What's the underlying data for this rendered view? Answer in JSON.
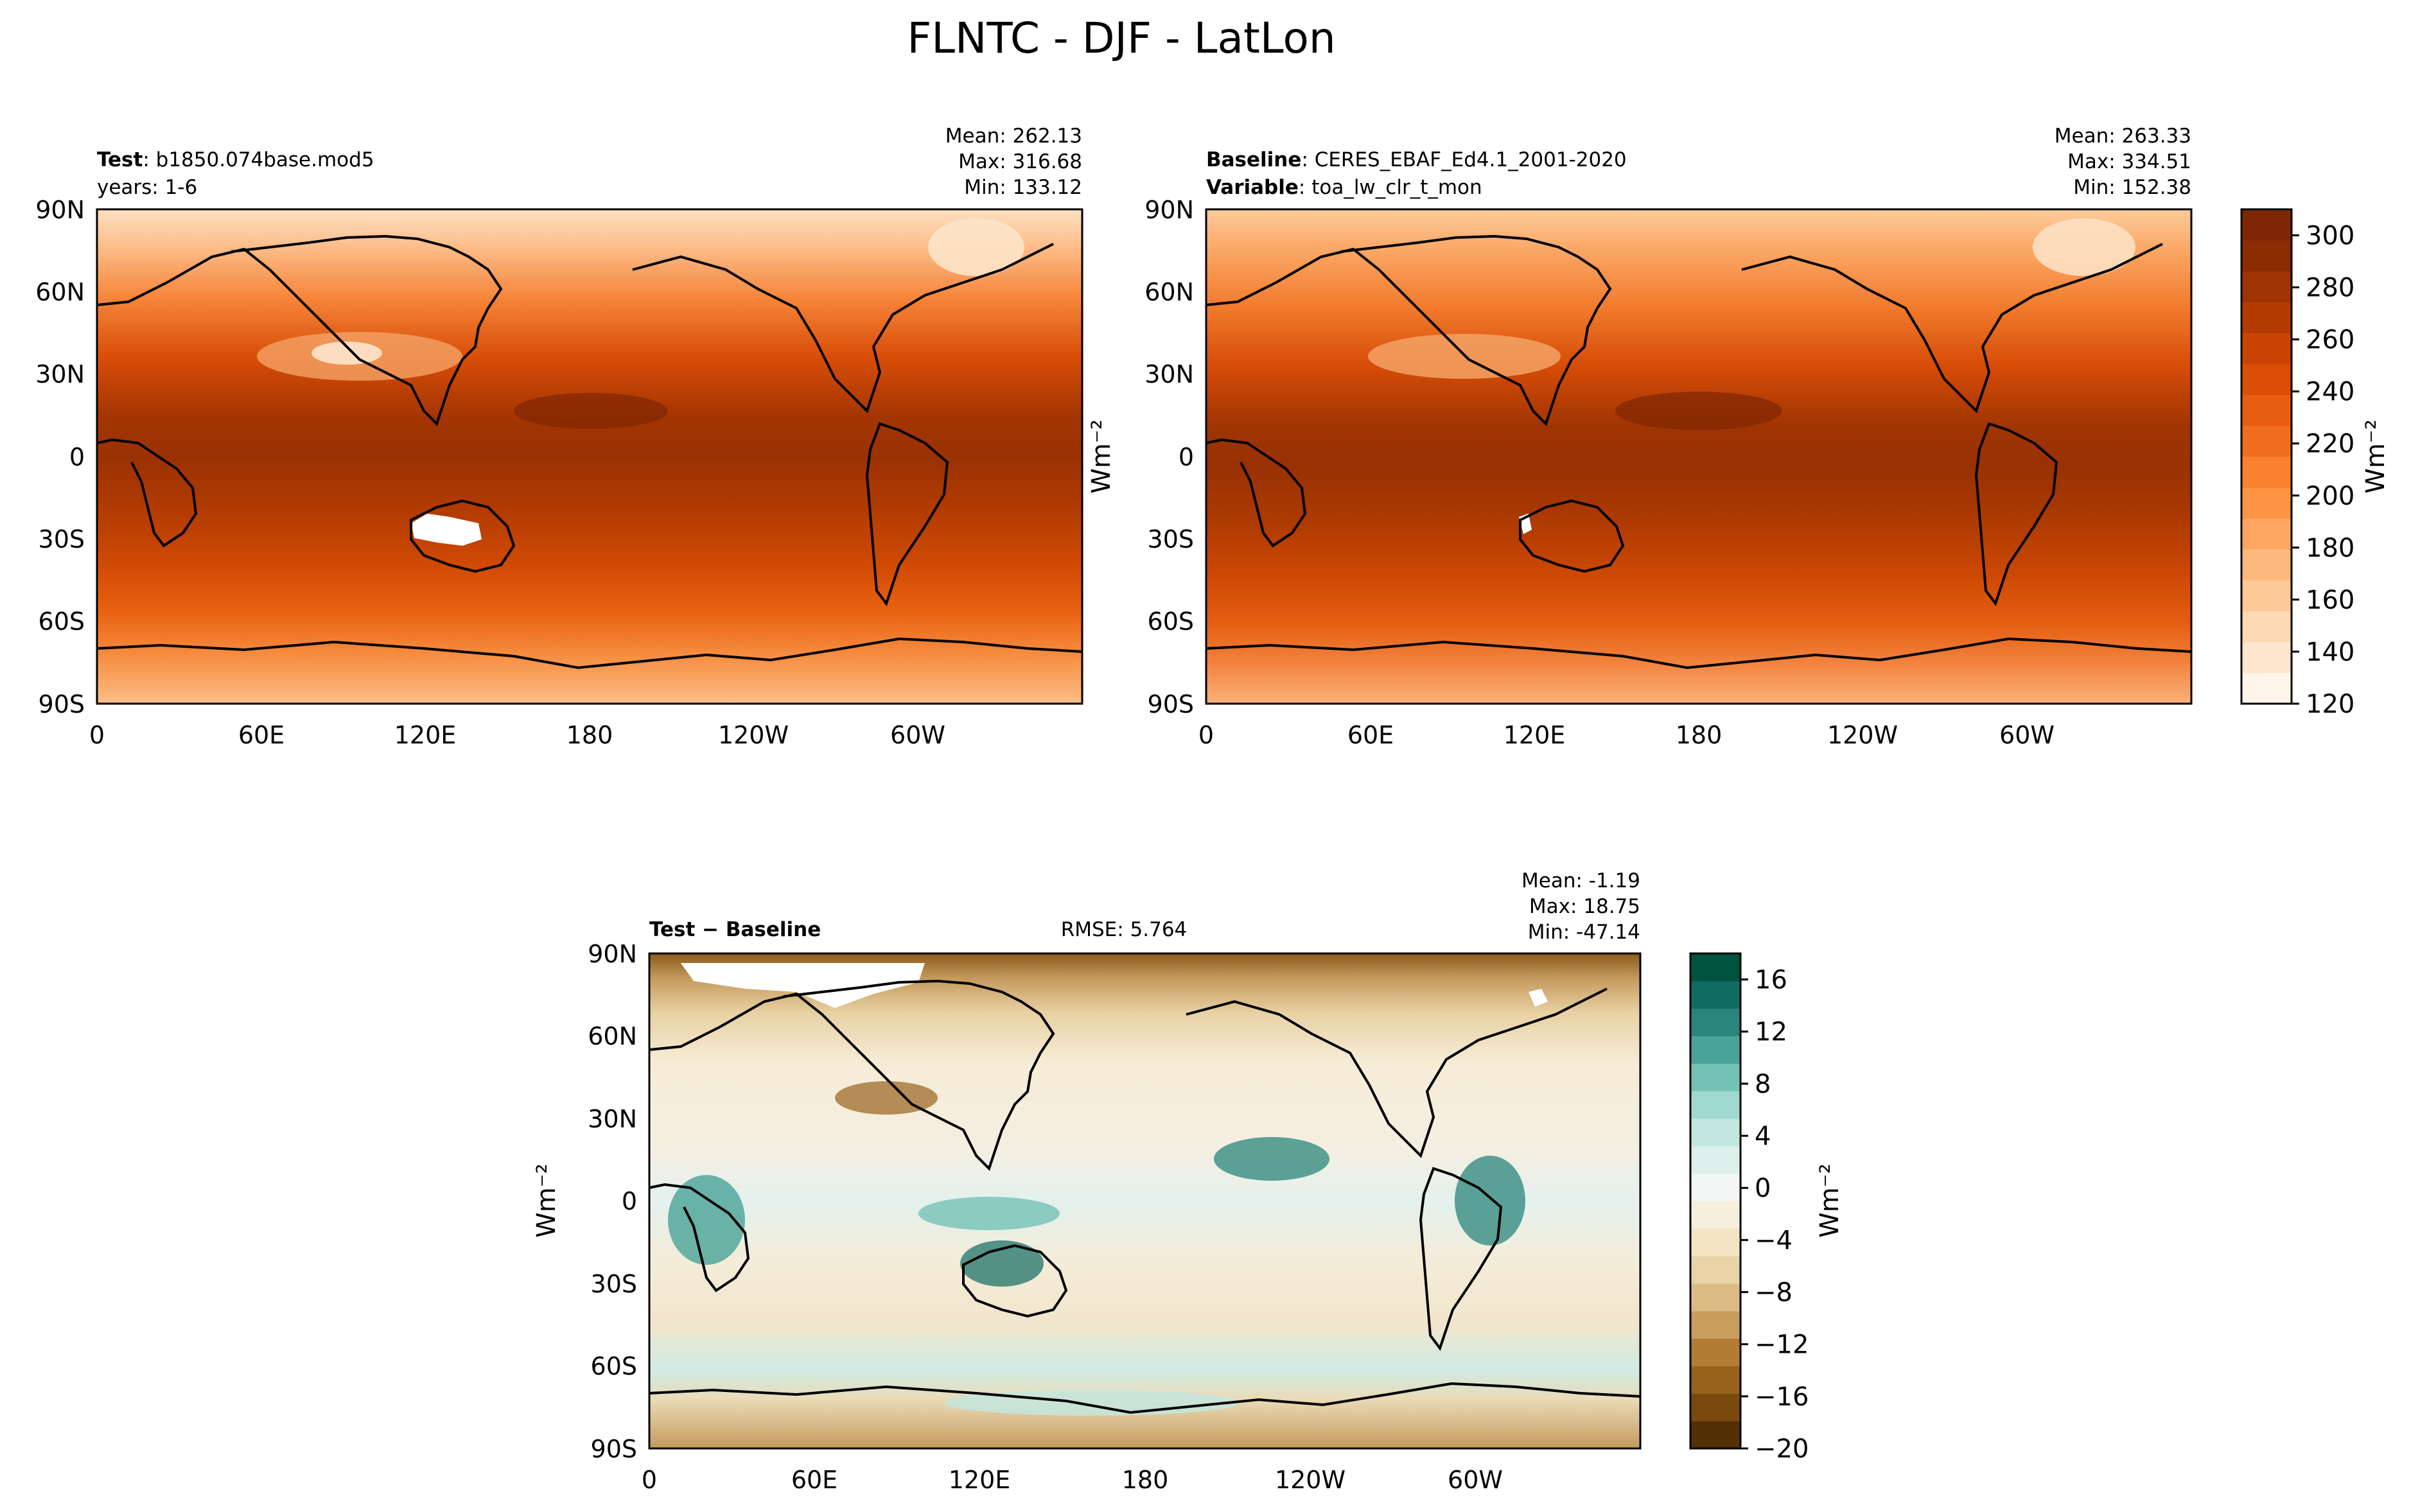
{
  "title": "FLNTC - DJF - LatLon",
  "panels": {
    "test": {
      "label_bold": "Test",
      "label_text": "b1850.074base.mod5",
      "line2": "years: 1-6",
      "mean": "Mean: 262.13",
      "max": "Max: 316.68",
      "min": "Min: 133.12"
    },
    "baseline": {
      "label_bold": "Baseline",
      "label_text": "CERES_EBAF_Ed4.1_2001-2020",
      "line2_bold": "Variable",
      "line2_text": "toa_lw_clr_t_mon",
      "mean": "Mean: 263.33",
      "max": "Max: 334.51",
      "min": "Min: 152.38",
      "ylabel": "Wm⁻²"
    },
    "diff": {
      "label_bold": "Test − Baseline",
      "rmse": "RMSE: 5.764",
      "mean": "Mean: -1.19",
      "max": "Max: 18.75",
      "min": "Min: -47.14",
      "ylabel": "Wm⁻²"
    }
  },
  "axes": {
    "lat_ticks": [
      "90N",
      "60N",
      "30N",
      "0",
      "30S",
      "60S",
      "90S"
    ],
    "lon_ticks": [
      "0",
      "60E",
      "120E",
      "180",
      "120W",
      "60W"
    ]
  },
  "colorbar_top": {
    "label": "Wm⁻²",
    "ticks": [
      "300",
      "280",
      "260",
      "240",
      "220",
      "200",
      "180",
      "160",
      "140",
      "120"
    ],
    "range": [
      120,
      310
    ],
    "colors": [
      "#fff5eb",
      "#fee6ce",
      "#fdd9b4",
      "#fdc997",
      "#fdb97d",
      "#fda762",
      "#fd9446",
      "#f9812f",
      "#f16d1f",
      "#e85d12",
      "#dc4e07",
      "#c94402",
      "#b33b02",
      "#9e3303",
      "#8a2c04",
      "#7f2704"
    ]
  },
  "colorbar_diff": {
    "label": "Wm⁻²",
    "ticks": [
      "16",
      "12",
      "8",
      "4",
      "0",
      "−4",
      "−8",
      "−12",
      "−16",
      "−20"
    ],
    "range": [
      -20,
      18
    ],
    "colors": [
      "#543005",
      "#7a4a0d",
      "#98621c",
      "#b27d33",
      "#c99d5c",
      "#dcbc84",
      "#e9d3a5",
      "#f3e4c3",
      "#f7efdd",
      "#f3f6f4",
      "#dcefeb",
      "#c2e7e0",
      "#9fd9cf",
      "#74c2b5",
      "#4aa399",
      "#2a857c",
      "#106b61",
      "#00533f"
    ]
  },
  "chart_data": [
    {
      "type": "heatmap",
      "title": "Test: b1850.074base.mod5",
      "subtitle": "years: 1-6",
      "stats": {
        "mean": 262.13,
        "max": 316.68,
        "min": 133.12
      },
      "x": [
        "0",
        "60E",
        "120E",
        "180",
        "120W",
        "60W"
      ],
      "y": [
        "90N",
        "60N",
        "30N",
        "0",
        "30S",
        "60S",
        "90S"
      ],
      "colorbar_range": [
        120,
        310
      ]
    },
    {
      "type": "heatmap",
      "title": "Baseline: CERES_EBAF_Ed4.1_2001-2020",
      "subtitle": "Variable: toa_lw_clr_t_mon",
      "stats": {
        "mean": 263.33,
        "max": 334.51,
        "min": 152.38
      },
      "x": [
        "0",
        "60E",
        "120E",
        "180",
        "120W",
        "60W"
      ],
      "y": [
        "90N",
        "60N",
        "30N",
        "0",
        "30S",
        "60S",
        "90S"
      ],
      "colorbar_range": [
        120,
        310
      ]
    },
    {
      "type": "heatmap",
      "title": "Test − Baseline",
      "rmse": 5.764,
      "stats": {
        "mean": -1.19,
        "max": 18.75,
        "min": -47.14
      },
      "x": [
        "0",
        "60E",
        "120E",
        "180",
        "120W",
        "60W"
      ],
      "y": [
        "90N",
        "60N",
        "30N",
        "0",
        "30S",
        "60S",
        "90S"
      ],
      "colorbar_range": [
        -20,
        18
      ]
    }
  ]
}
